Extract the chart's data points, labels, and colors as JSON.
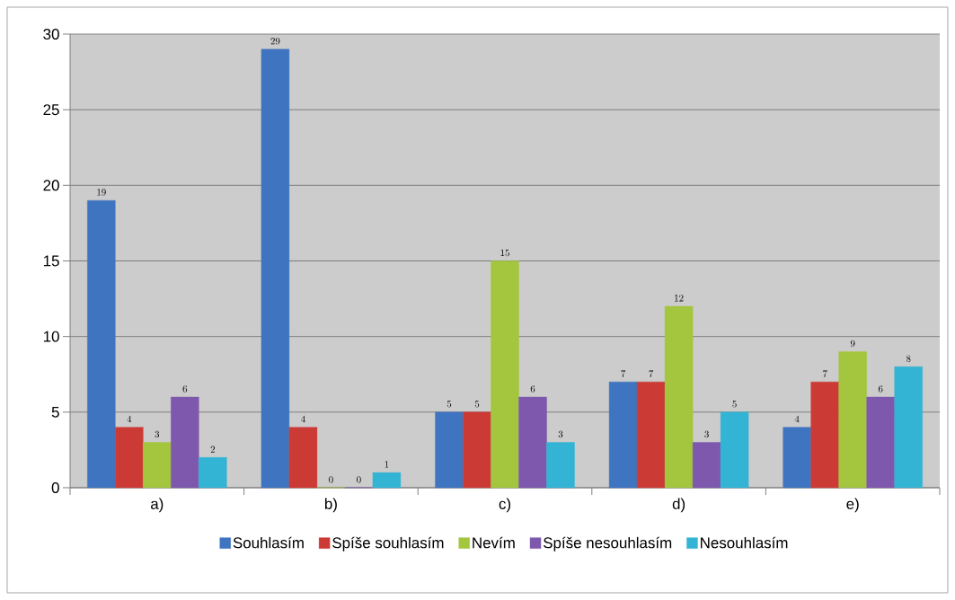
{
  "chart_data": {
    "type": "bar",
    "categories": [
      "a)",
      "b)",
      "c)",
      "d)",
      "e)"
    ],
    "series": [
      {
        "name": "Souhlasím",
        "color": "#3f74c0",
        "values": [
          19,
          29,
          5,
          7,
          4
        ]
      },
      {
        "name": "Spíše souhlasím",
        "color": "#cc3a36",
        "values": [
          4,
          4,
          5,
          7,
          7
        ]
      },
      {
        "name": "Nevím",
        "color": "#a3c63e",
        "values": [
          3,
          0,
          15,
          12,
          9
        ]
      },
      {
        "name": "Spíše nesouhlasím",
        "color": "#7e58ad",
        "values": [
          6,
          0,
          6,
          3,
          6
        ]
      },
      {
        "name": "Nesouhlasím",
        "color": "#33b4d4",
        "values": [
          2,
          1,
          3,
          5,
          8
        ]
      }
    ],
    "ylim": [
      0,
      30
    ],
    "yticks": [
      0,
      5,
      10,
      15,
      20,
      25,
      30
    ],
    "grid": "y",
    "legend": "bottom",
    "data_labels": true
  }
}
